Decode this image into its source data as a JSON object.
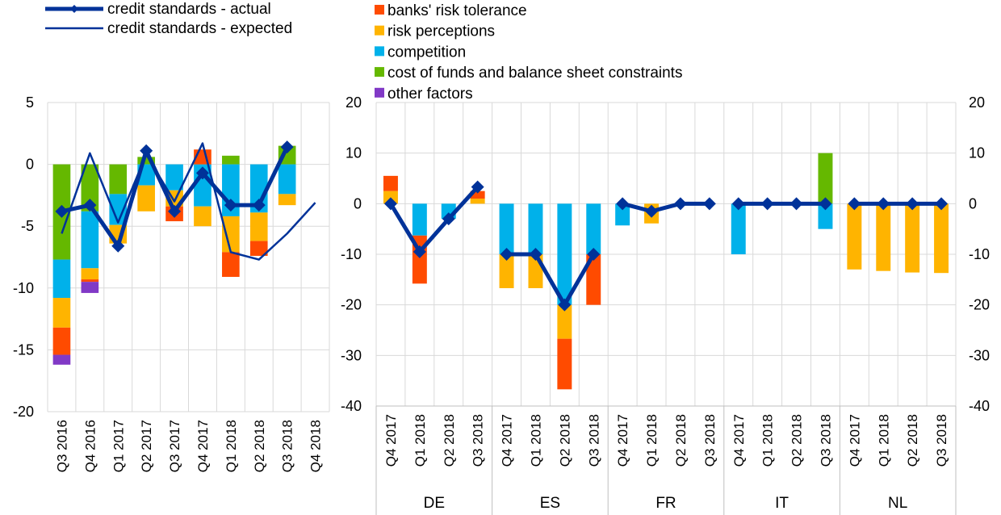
{
  "chart_data": [
    {
      "type": "bar",
      "categories": [
        "Q3 2016",
        "Q4 2016",
        "Q1 2017",
        "Q2 2017",
        "Q3 2017",
        "Q4 2017",
        "Q1 2018",
        "Q2 2018",
        "Q3 2018",
        "Q4 2018"
      ],
      "ylim": [
        -20,
        5
      ],
      "yticks": [
        5,
        0,
        -5,
        -10,
        -15,
        -20
      ],
      "grid": true,
      "stack_order": [
        "cost of funds and balance sheet constraints",
        "competition",
        "risk perceptions",
        "banks' risk tolerance",
        "other factors"
      ],
      "series": [
        {
          "name": "banks' risk tolerance",
          "color": "#ff4b00",
          "values": [
            -2.2,
            -0.2,
            0,
            0,
            -1.2,
            1.2,
            -2.0,
            -1.2,
            0,
            null
          ]
        },
        {
          "name": "risk perceptions",
          "color": "#ffb400",
          "values": [
            -2.4,
            -0.9,
            -1.5,
            -2.1,
            -1.3,
            -1.6,
            -2.9,
            -2.3,
            -0.9,
            null
          ]
        },
        {
          "name": "competition",
          "color": "#00b1ea",
          "values": [
            -3.1,
            -4.6,
            -2.5,
            -1.7,
            -2.1,
            -3.4,
            -4.2,
            -3.9,
            -2.4,
            null
          ]
        },
        {
          "name": "cost of funds and balance sheet constraints",
          "color": "#65b800",
          "values": [
            -7.7,
            -3.8,
            -2.4,
            0.6,
            0,
            0,
            0.7,
            0,
            1.5,
            null
          ]
        },
        {
          "name": "other factors",
          "color": "#8139c6",
          "values": [
            -0.8,
            -0.9,
            0,
            0,
            0,
            0,
            0,
            0,
            0,
            null
          ]
        }
      ],
      "lines": [
        {
          "name": "credit standards - actual",
          "color": "#003299",
          "marker": "diamond",
          "values": [
            -3.8,
            -3.3,
            -6.6,
            1.1,
            -3.8,
            -0.7,
            -3.3,
            -3.3,
            1.4,
            null
          ]
        },
        {
          "name": "credit standards - expected",
          "color": "#003299",
          "marker": "none",
          "values": [
            -5.6,
            0.9,
            -4.7,
            0.8,
            -3.0,
            1.7,
            -7.1,
            -7.7,
            -5.6,
            -3.1
          ]
        }
      ]
    },
    {
      "type": "bar",
      "groups": [
        "DE",
        "ES",
        "FR",
        "IT",
        "NL"
      ],
      "categories": [
        "Q4 2017",
        "Q1 2018",
        "Q2 2018",
        "Q3 2018"
      ],
      "ylim": [
        -40,
        20
      ],
      "yticks": [
        20,
        10,
        0,
        -10,
        -20,
        -30,
        -40
      ],
      "right_axis_ticks": [
        20,
        10,
        0,
        -10,
        -20,
        -30,
        -40
      ],
      "grid": true,
      "stack_order": [
        "cost of funds and balance sheet constraints",
        "competition",
        "risk perceptions",
        "banks' risk tolerance",
        "other factors"
      ],
      "data": {
        "DE": {
          "banks' risk tolerance": [
            3.0,
            -9.5,
            0,
            1.5
          ],
          "risk perceptions": [
            2.5,
            0,
            0,
            1.0
          ],
          "competition": [
            0,
            -6.3,
            -3.0,
            0
          ],
          "cost of funds and balance sheet constraints": [
            0,
            0,
            0,
            0
          ],
          "other factors": [
            0,
            0,
            0,
            0
          ],
          "actual": [
            0,
            -9.5,
            -3.0,
            3.3
          ]
        },
        "ES": {
          "banks' risk tolerance": [
            0,
            0,
            -10.0,
            -10.0
          ],
          "risk perceptions": [
            -6.7,
            -6.7,
            -6.7,
            0
          ],
          "competition": [
            -10.0,
            -10.0,
            -20.0,
            -10.0
          ],
          "cost of funds and balance sheet constraints": [
            0,
            0,
            0,
            0
          ],
          "other factors": [
            0,
            0,
            0,
            0
          ],
          "actual": [
            -10.0,
            -10.0,
            -20.0,
            -10.0
          ]
        },
        "FR": {
          "banks' risk tolerance": [
            0,
            0,
            0,
            0
          ],
          "risk perceptions": [
            0,
            -3.9,
            0,
            0
          ],
          "competition": [
            -4.3,
            0,
            0,
            0
          ],
          "cost of funds and balance sheet constraints": [
            0,
            0,
            0,
            0
          ],
          "other factors": [
            0,
            0,
            0,
            0
          ],
          "actual": [
            0,
            -1.5,
            0,
            0
          ]
        },
        "IT": {
          "banks' risk tolerance": [
            0,
            0,
            0,
            0
          ],
          "risk perceptions": [
            0,
            0,
            0,
            0
          ],
          "competition": [
            -10.0,
            0,
            0,
            -5.0
          ],
          "cost of funds and balance sheet constraints": [
            0,
            0,
            0,
            10.0
          ],
          "other factors": [
            0,
            0,
            0,
            0
          ],
          "actual": [
            0,
            0,
            0,
            0
          ]
        },
        "NL": {
          "banks' risk tolerance": [
            0,
            0,
            0,
            0
          ],
          "risk perceptions": [
            -13.0,
            -13.3,
            -13.6,
            -13.7
          ],
          "competition": [
            0,
            0,
            0,
            0
          ],
          "cost of funds and balance sheet constraints": [
            0,
            0,
            0,
            0
          ],
          "other factors": [
            0,
            0,
            0,
            0
          ],
          "actual": [
            0,
            0,
            0,
            0
          ]
        }
      }
    }
  ],
  "legend": {
    "lines": [
      {
        "label": "credit standards - actual",
        "color": "#003299",
        "marker": "diamond"
      },
      {
        "label": "credit standards - expected",
        "color": "#003299",
        "marker": "none"
      }
    ],
    "bars": [
      {
        "label": "banks' risk tolerance",
        "color": "#ff4b00"
      },
      {
        "label": "risk perceptions",
        "color": "#ffb400"
      },
      {
        "label": "competition",
        "color": "#00b1ea"
      },
      {
        "label": "cost of funds and balance sheet constraints",
        "color": "#65b800"
      },
      {
        "label": "other factors",
        "color": "#8139c6"
      }
    ]
  }
}
